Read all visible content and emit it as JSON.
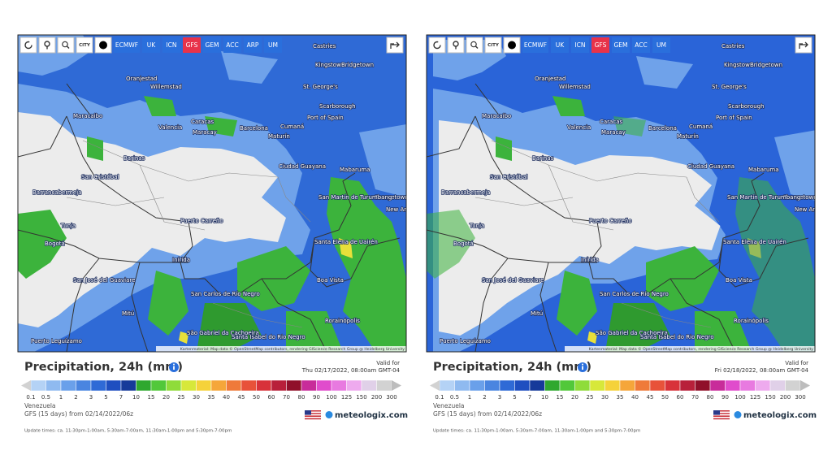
{
  "panels": [
    {
      "toolbar": {
        "icon_label": "CITY",
        "models": [
          "ECMWF",
          "UK",
          "ICN",
          "GFS",
          "GEM",
          "ACC",
          "ARP",
          "UM"
        ],
        "active": "GFS"
      },
      "map": {
        "cities": [
          "Castries",
          "Kingstown",
          "Bridgetown",
          "Oranjestad",
          "Willemstad",
          "St. George's",
          "Scarborough",
          "Maracaibo",
          "Port of Spain",
          "Caracas",
          "Valencia",
          "Maracay",
          "Barcelona",
          "Cumaná",
          "Maturín",
          "Barinas",
          "San Cristóbal",
          "Ciudad Guayana",
          "Mabaruma",
          "Georgetown",
          "New Amsterdam",
          "San Martín de Turumbang",
          "Barrancabermeja",
          "Puerto Carreño",
          "Tunja",
          "Bogotá",
          "Santa Elena de Uairén",
          "Inírida",
          "San José del Guaviare",
          "San Carlos de Río Negro",
          "Boa Vista",
          "Mitú",
          "São Gabriel da Cachoeira",
          "Santa Isabel do Rio Negro",
          "Rorainópolis",
          "Puerto Leguízamo"
        ],
        "attribution": "Kartenmaterial: Map data © OpenStreetMap contributors, rendering GIScience Research Group @ Heidelberg University"
      },
      "legend": {
        "title": "Precipitation, 24h (mm)",
        "valid_label": "Valid for",
        "valid_time": "Thu 02/17/2022, 08:00am GMT-04",
        "scale_ticks": [
          0.1,
          0.5,
          1,
          2,
          3,
          5,
          7,
          10,
          15,
          20,
          25,
          30,
          35,
          40,
          45,
          50,
          60,
          70,
          80,
          90,
          100,
          125,
          150,
          200,
          300
        ],
        "scale_colors": [
          "#b4d2f5",
          "#8fbaf0",
          "#6aa0ea",
          "#4a85e0",
          "#2f6ad6",
          "#1f4fc0",
          "#163a9a",
          "#2fa82f",
          "#52c83a",
          "#8fdc3a",
          "#d7e83a",
          "#f5d23a",
          "#f5a63a",
          "#ef7a3a",
          "#e8523a",
          "#d8323a",
          "#b8203a",
          "#90102a",
          "#c82c9a",
          "#e04ccc",
          "#e87ae0",
          "#eeaaee",
          "#e0d0e8",
          "#d2d2d2"
        ],
        "region": "Venezuela",
        "run": "GFS (15 days) from 02/14/2022/06z",
        "brand": "meteologix.com",
        "update_times": "Update times: ca. 11:30pm-1:00am, 5:30am-7:00am, 11:30am-1:00pm and 5:30pm-7:00pm"
      }
    },
    {
      "toolbar": {
        "icon_label": "CITY",
        "models": [
          "ECMWF",
          "UK",
          "ICN",
          "GFS",
          "GEM",
          "ACC",
          "UM"
        ],
        "active": "GFS"
      },
      "map": {
        "cities": [
          "Castries",
          "Kingstown",
          "Bridgetown",
          "Oranjestad",
          "Willemstad",
          "St. George's",
          "Scarborough",
          "Maracaibo",
          "Port of Spain",
          "Caracas",
          "Valencia",
          "Maracay",
          "Barcelona",
          "Cumaná",
          "Maturín",
          "Barinas",
          "San Cristóbal",
          "Ciudad Guayana",
          "Mabaruma",
          "Georgetown",
          "New Amsterdam",
          "San Martín de Turumbang",
          "Barrancabermeja",
          "Puerto Carreño",
          "Tunja",
          "Bogotá",
          "Santa Elena de Uairén",
          "Inírida",
          "San José del Guaviare",
          "San Carlos de Río Negro",
          "Boa Vista",
          "Mitú",
          "São Gabriel da Cachoeira",
          "Santa Isabel do Rio Negro",
          "Rorainópolis",
          "Puerto Leguízamo"
        ],
        "attribution": "Kartenmaterial: Map data © OpenStreetMap contributors, rendering GIScience Research Group @ Heidelberg University"
      },
      "legend": {
        "title": "Precipitation, 24h (mm)",
        "valid_label": "Valid for",
        "valid_time": "Fri 02/18/2022, 08:00am GMT-04",
        "scale_ticks": [
          0.1,
          0.5,
          1,
          2,
          3,
          5,
          7,
          10,
          15,
          20,
          25,
          30,
          35,
          40,
          45,
          50,
          60,
          70,
          80,
          90,
          100,
          125,
          150,
          200,
          300
        ],
        "scale_colors": [
          "#b4d2f5",
          "#8fbaf0",
          "#6aa0ea",
          "#4a85e0",
          "#2f6ad6",
          "#1f4fc0",
          "#163a9a",
          "#2fa82f",
          "#52c83a",
          "#8fdc3a",
          "#d7e83a",
          "#f5d23a",
          "#f5a63a",
          "#ef7a3a",
          "#e8523a",
          "#d8323a",
          "#b8203a",
          "#90102a",
          "#c82c9a",
          "#e04ccc",
          "#e87ae0",
          "#eeaaee",
          "#e0d0e8",
          "#d2d2d2"
        ],
        "region": "Venezuela",
        "run": "GFS (15 days) from 02/14/2022/06z",
        "brand": "meteologix.com",
        "update_times": "Update times: ca. 11:30pm-1:00am, 5:30am-7:00am, 11:30am-1:00pm and 5:30pm-7:00pm"
      }
    }
  ]
}
